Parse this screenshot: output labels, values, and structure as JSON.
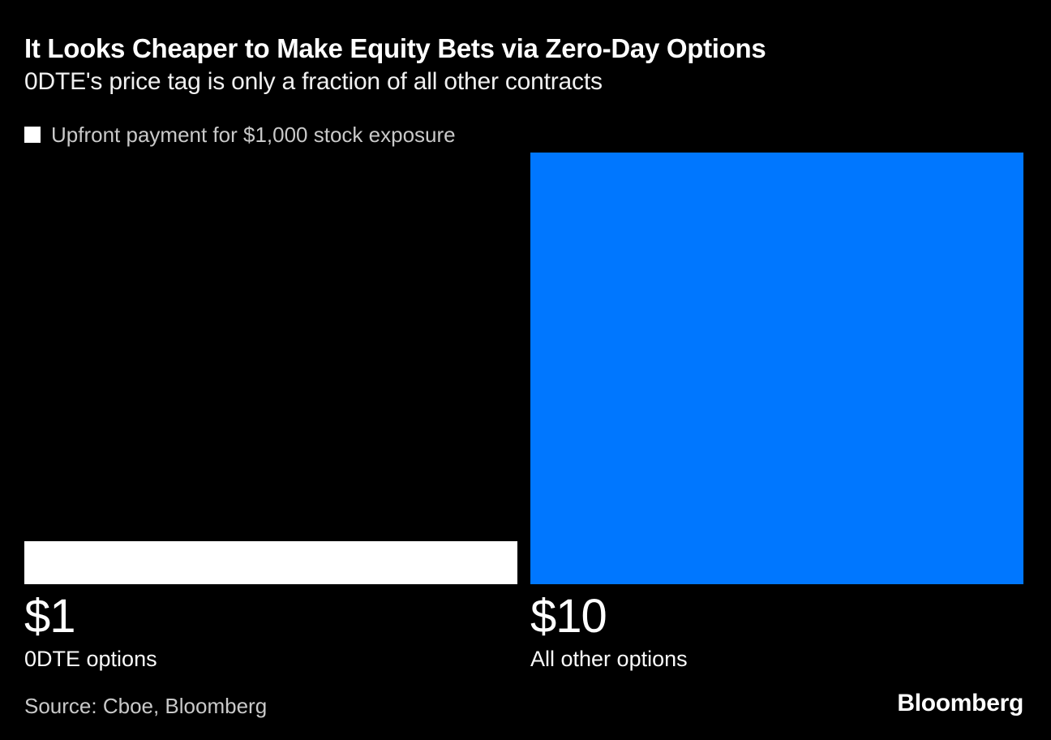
{
  "chart_data": {
    "type": "bar",
    "title": "It Looks Cheaper to Make Equity Bets via Zero-Day Options",
    "subtitle": "0DTE's price tag is only a fraction of all other contracts",
    "series_label": "Upfront payment for $1,000 stock exposure",
    "categories": [
      "0DTE options",
      "All other options"
    ],
    "values": [
      1,
      10
    ],
    "value_labels": [
      "$1",
      "$10"
    ],
    "bar_colors": [
      "#ffffff",
      "#0077ff"
    ],
    "ylim": [
      0,
      10
    ],
    "grid": false,
    "legend_position": "top-left",
    "orientation": "vertical"
  },
  "legend": {
    "swatch_color": "#ffffff"
  },
  "footer": {
    "source": "Source: Cboe, Bloomberg",
    "brand": "Bloomberg"
  },
  "colors": {
    "background": "#000000",
    "title_text": "#ffffff",
    "subtitle_text": "#f0f0f0",
    "muted_text": "#c9c9c9",
    "bar_white": "#ffffff",
    "bar_blue": "#0077ff"
  }
}
